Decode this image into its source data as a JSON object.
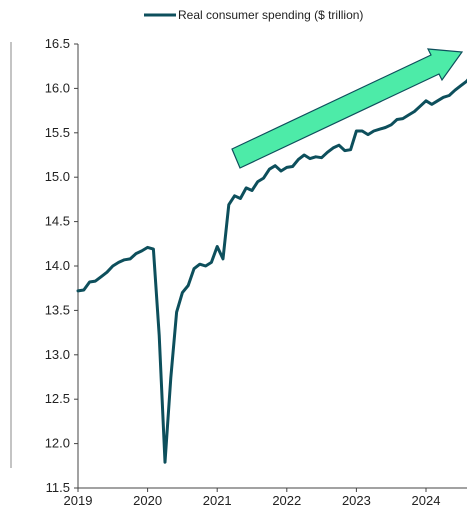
{
  "chart_data": {
    "type": "line",
    "legend": {
      "label": "Real consumer spending ($ trillion)",
      "placement": "top"
    },
    "x_tick_labels": [
      "2019",
      "2020",
      "2021",
      "2022",
      "2023",
      "2024"
    ],
    "y_tick_labels": [
      "11.5",
      "12.0",
      "12.5",
      "13.0",
      "13.5",
      "14.0",
      "14.5",
      "15.0",
      "15.5",
      "16.0",
      "16.5"
    ],
    "xlim": [
      "2019-01",
      "2024-09"
    ],
    "ylim": [
      11.5,
      16.5
    ],
    "grid": false,
    "colors": {
      "line": "#0d4f5c",
      "arrow_fill": "#4deba8",
      "arrow_stroke": "#0d4f5c",
      "axis": "#444444"
    },
    "series": [
      {
        "name": "Real consumer spending ($ trillion)",
        "x": [
          "2019-01",
          "2019-02",
          "2019-03",
          "2019-04",
          "2019-05",
          "2019-06",
          "2019-07",
          "2019-08",
          "2019-09",
          "2019-10",
          "2019-11",
          "2019-12",
          "2020-01",
          "2020-02",
          "2020-03",
          "2020-04",
          "2020-05",
          "2020-06",
          "2020-07",
          "2020-08",
          "2020-09",
          "2020-10",
          "2020-11",
          "2020-12",
          "2021-01",
          "2021-02",
          "2021-03",
          "2021-04",
          "2021-05",
          "2021-06",
          "2021-07",
          "2021-08",
          "2021-09",
          "2021-10",
          "2021-11",
          "2021-12",
          "2022-01",
          "2022-02",
          "2022-03",
          "2022-04",
          "2022-05",
          "2022-06",
          "2022-07",
          "2022-08",
          "2022-09",
          "2022-10",
          "2022-11",
          "2022-12",
          "2023-01",
          "2023-02",
          "2023-03",
          "2023-04",
          "2023-05",
          "2023-06",
          "2023-07",
          "2023-08",
          "2023-09",
          "2023-10",
          "2023-11",
          "2023-12",
          "2024-01",
          "2024-02",
          "2024-03",
          "2024-04",
          "2024-05",
          "2024-06",
          "2024-07",
          "2024-08",
          "2024-09"
        ],
        "values": [
          13.72,
          13.73,
          13.82,
          13.83,
          13.88,
          13.93,
          14.0,
          14.04,
          14.07,
          14.08,
          14.14,
          14.17,
          14.21,
          14.19,
          13.22,
          11.79,
          12.74,
          13.48,
          13.7,
          13.78,
          13.97,
          14.02,
          14.0,
          14.04,
          14.22,
          14.08,
          14.69,
          14.79,
          14.76,
          14.88,
          14.85,
          14.95,
          14.99,
          15.09,
          15.13,
          15.07,
          15.11,
          15.12,
          15.2,
          15.25,
          15.21,
          15.23,
          15.22,
          15.28,
          15.33,
          15.36,
          15.3,
          15.31,
          15.52,
          15.52,
          15.48,
          15.52,
          15.54,
          15.56,
          15.59,
          15.65,
          15.66,
          15.7,
          15.74,
          15.8,
          15.86,
          15.82,
          15.86,
          15.9,
          15.92,
          15.98,
          16.03,
          16.08,
          16.16
        ]
      }
    ]
  }
}
